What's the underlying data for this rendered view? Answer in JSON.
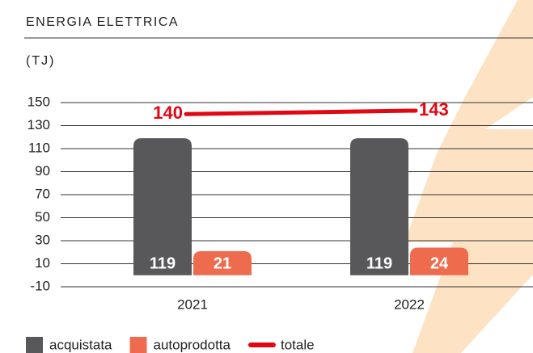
{
  "chart_data": {
    "type": "bar",
    "title": "ENERGIA ELETTRICA",
    "y_label": "(TJ)",
    "categories": [
      "2021",
      "2022"
    ],
    "series": [
      {
        "name": "acquistata",
        "color": "#58585b",
        "values": [
          119,
          119
        ]
      },
      {
        "name": "autoprodotta",
        "color": "#ee6c4d",
        "values": [
          21,
          24
        ]
      },
      {
        "name": "totale",
        "color": "#e30613",
        "values": [
          140,
          143
        ],
        "type": "line"
      }
    ],
    "ylim": [
      -10,
      150
    ],
    "yticks": [
      -10,
      10,
      30,
      50,
      70,
      90,
      110,
      130,
      150
    ],
    "grid": true
  }
}
